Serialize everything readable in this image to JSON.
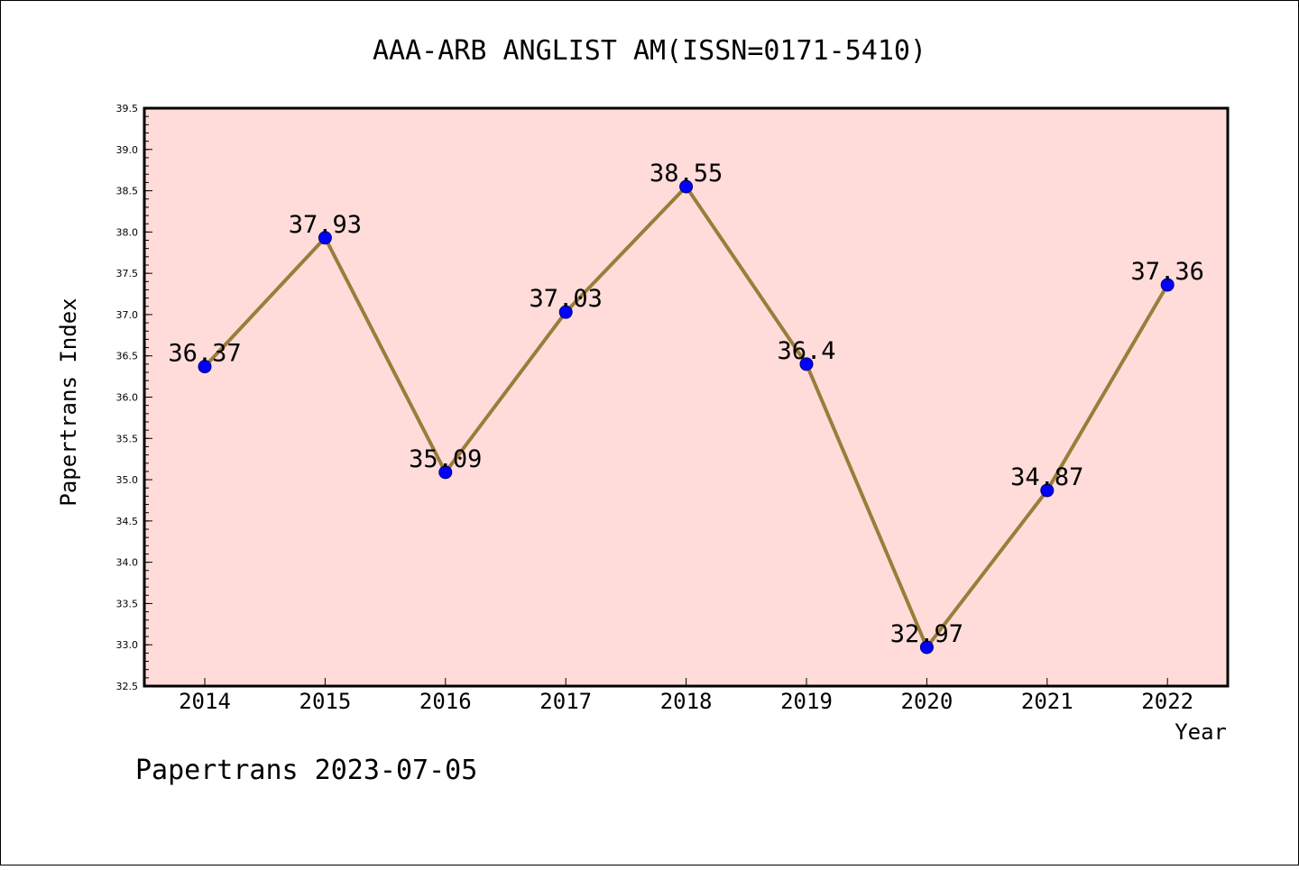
{
  "chart_data": {
    "type": "line",
    "title": "AAA-ARB ANGLIST AM(ISSN=0171-5410)",
    "xlabel": "Year",
    "ylabel": "Papertrans Index",
    "x": [
      "2014",
      "2015",
      "2016",
      "2017",
      "2018",
      "2019",
      "2020",
      "2021",
      "2022"
    ],
    "series": [
      {
        "values": [
          36.37,
          37.93,
          35.09,
          37.03,
          38.55,
          36.4,
          32.97,
          34.87,
          37.36
        ],
        "data_labels": [
          "36.37",
          "37.93",
          "35.09",
          "37.03",
          "38.55",
          "36.4",
          "32.97",
          "34.87",
          "37.36"
        ],
        "line_color": "#9a7d3a",
        "marker_color": "#0000ff"
      }
    ],
    "ylim": [
      32.5,
      39.5
    ],
    "yticks": [
      "32.5",
      "33.0",
      "33.5",
      "34.0",
      "34.5",
      "35.0",
      "35.5",
      "36.0",
      "36.5",
      "37.0",
      "37.5",
      "38.0",
      "38.5",
      "39.0",
      "39.5"
    ],
    "grid": false,
    "plot_background": "#ffdcda",
    "footer": "Papertrans 2023-07-05"
  }
}
